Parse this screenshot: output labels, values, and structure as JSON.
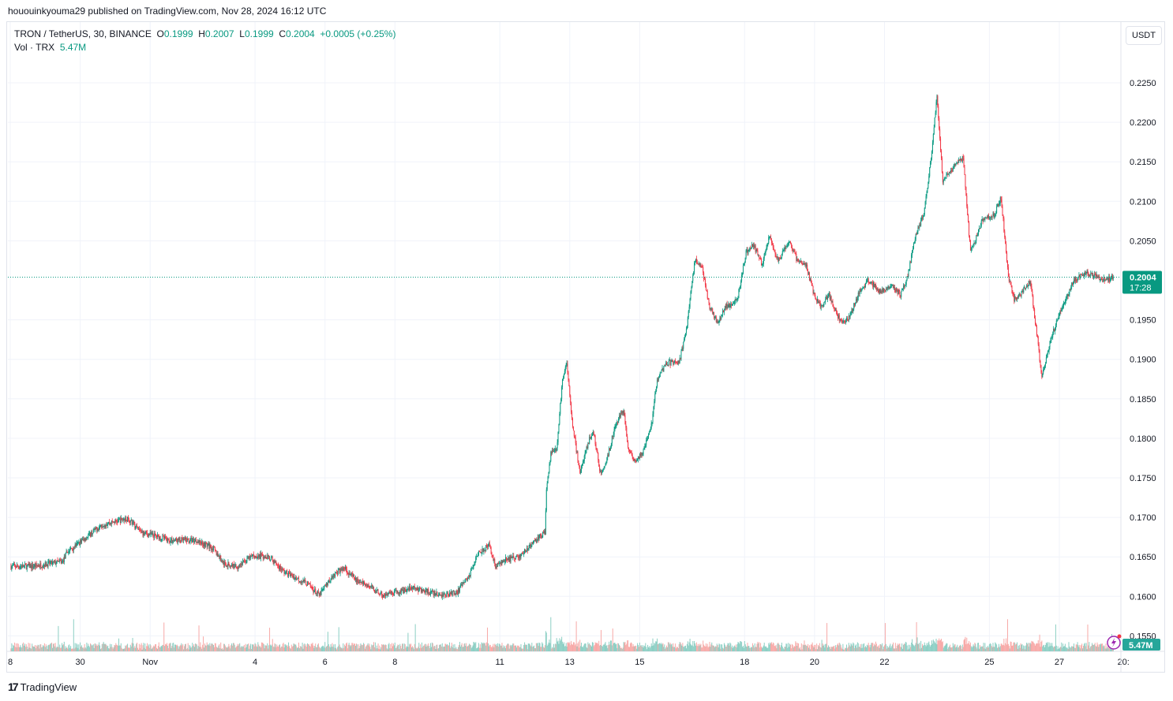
{
  "publisher": "hououinkyouma29 published on TradingView.com, Nov 28, 2024 16:12 UTC",
  "legend": {
    "symbol": "TRON / TetherUS, 30, BINANCE",
    "o_label": "O",
    "o": "0.1999",
    "h_label": "H",
    "h": "0.2007",
    "l_label": "L",
    "l": "0.1999",
    "c_label": "C",
    "c": "0.2004",
    "change": "+0.0005 (+0.25%)",
    "vol_label": "Vol · TRX",
    "vol": "5.47M"
  },
  "currency_button": "USDT",
  "last_price_label": "0.2004",
  "countdown": "17:28",
  "volume_badge": "5.47M",
  "brand": "TradingView",
  "colors": {
    "up": "#089981",
    "down": "#f23645",
    "vol_up": "#8ccfc4",
    "vol_down": "#f7a9a7",
    "grid": "#f0f3fa"
  },
  "chart_data": {
    "type": "candlestick",
    "symbol": "TRXUSDT",
    "interval": "30",
    "ylim": [
      0.154,
      0.229
    ],
    "y_ticks": [
      "0.2250",
      "0.2200",
      "0.2150",
      "0.2100",
      "0.2050",
      "0.1950",
      "0.1900",
      "0.1850",
      "0.1800",
      "0.1750",
      "0.1700",
      "0.1650",
      "0.1600",
      "0.1550"
    ],
    "x_ticks": [
      {
        "label": "8",
        "date": "10-28 00"
      },
      {
        "label": "30",
        "date": "10-30 00"
      },
      {
        "label": "Nov",
        "date": "11-01 00"
      },
      {
        "label": "4",
        "date": "11-04 00"
      },
      {
        "label": "6",
        "date": "11-06 00"
      },
      {
        "label": "8",
        "date": "11-08 00"
      },
      {
        "label": "11",
        "date": "11-11 00"
      },
      {
        "label": "13",
        "date": "11-13 00"
      },
      {
        "label": "15",
        "date": "11-15 00"
      },
      {
        "label": "18",
        "date": "11-18 00"
      },
      {
        "label": "20",
        "date": "11-20 00"
      },
      {
        "label": "22",
        "date": "11-22 00"
      },
      {
        "label": "25",
        "date": "11-25 00"
      },
      {
        "label": "27",
        "date": "11-27 00"
      },
      {
        "label": "20:",
        "date": "11-28 20"
      }
    ],
    "last_price": 0.2004,
    "grid": true,
    "price_path": [
      [
        "10-28 00",
        0.1638
      ],
      [
        "10-28 15",
        0.1638
      ],
      [
        "10-29 12",
        0.1644
      ],
      [
        "10-29 15",
        0.1656
      ],
      [
        "10-30 05",
        0.1676
      ],
      [
        "10-30 15",
        0.1691
      ],
      [
        "10-31 08",
        0.1698
      ],
      [
        "10-31 10",
        0.1696
      ],
      [
        "10-31 18",
        0.1681
      ],
      [
        "11-01 05",
        0.1676
      ],
      [
        "11-01 13",
        0.1671
      ],
      [
        "11-02 08",
        0.1671
      ],
      [
        "11-02 19",
        0.1661
      ],
      [
        "11-03 03",
        0.1641
      ],
      [
        "11-03 12",
        0.1638
      ],
      [
        "11-03 22",
        0.1651
      ],
      [
        "11-04 09",
        0.1651
      ],
      [
        "11-04 20",
        0.1631
      ],
      [
        "11-05 12",
        0.1616
      ],
      [
        "11-05 20",
        0.1601
      ],
      [
        "11-06 05",
        0.1626
      ],
      [
        "11-06 13",
        0.1636
      ],
      [
        "11-06 21",
        0.1621
      ],
      [
        "11-07 08",
        0.1611
      ],
      [
        "11-07 16",
        0.1601
      ],
      [
        "11-08 00",
        0.1604
      ],
      [
        "11-08 11",
        0.1611
      ],
      [
        "11-08 22",
        0.1606
      ],
      [
        "11-09 08",
        0.1601
      ],
      [
        "11-09 19",
        0.1606
      ],
      [
        "11-10 03",
        0.1626
      ],
      [
        "11-10 09",
        0.1656
      ],
      [
        "11-10 17",
        0.1664
      ],
      [
        "11-10 21",
        0.1638
      ],
      [
        "11-11 04",
        0.1646
      ],
      [
        "11-11 14",
        0.1651
      ],
      [
        "11-11 23",
        0.1668
      ],
      [
        "11-12 07",
        0.1681
      ],
      [
        "11-12 08",
        0.1736
      ],
      [
        "11-12 11",
        0.1781
      ],
      [
        "11-12 15",
        0.1786
      ],
      [
        "11-12 19",
        0.1876
      ],
      [
        "11-12 22",
        0.1896
      ],
      [
        "11-13 02",
        0.1816
      ],
      [
        "11-13 07",
        0.1756
      ],
      [
        "11-13 13",
        0.1796
      ],
      [
        "11-13 16",
        0.1811
      ],
      [
        "11-13 21",
        0.1756
      ],
      [
        "11-14 02",
        0.1776
      ],
      [
        "11-14 07",
        0.1816
      ],
      [
        "11-14 13",
        0.1836
      ],
      [
        "11-14 16",
        0.1786
      ],
      [
        "11-14 21",
        0.1771
      ],
      [
        "11-15 02",
        0.1781
      ],
      [
        "11-15 08",
        0.1816
      ],
      [
        "11-15 12",
        0.1876
      ],
      [
        "11-15 19",
        0.1896
      ],
      [
        "11-16 03",
        0.1896
      ],
      [
        "11-16 08",
        0.1936
      ],
      [
        "11-16 11",
        0.1986
      ],
      [
        "11-16 14",
        0.2025
      ],
      [
        "11-16 19",
        0.2015
      ],
      [
        "11-17 00",
        0.1966
      ],
      [
        "11-17 06",
        0.1946
      ],
      [
        "11-17 11",
        0.1966
      ],
      [
        "11-17 19",
        0.1976
      ],
      [
        "11-18 01",
        0.2035
      ],
      [
        "11-18 06",
        0.2045
      ],
      [
        "11-18 12",
        0.202
      ],
      [
        "11-18 17",
        0.2055
      ],
      [
        "11-18 23",
        0.2025
      ],
      [
        "11-19 07",
        0.205
      ],
      [
        "11-19 12",
        0.2025
      ],
      [
        "11-19 18",
        0.202
      ],
      [
        "11-19 23",
        0.1986
      ],
      [
        "11-20 04",
        0.1966
      ],
      [
        "11-20 10",
        0.1981
      ],
      [
        "11-20 18",
        0.1946
      ],
      [
        "11-20 23",
        0.1951
      ],
      [
        "11-21 07",
        0.1986
      ],
      [
        "11-21 13",
        0.2
      ],
      [
        "11-21 21",
        0.1986
      ],
      [
        "11-22 05",
        0.1995
      ],
      [
        "11-22 11",
        0.1981
      ],
      [
        "11-22 16",
        0.2005
      ],
      [
        "11-22 21",
        0.2055
      ],
      [
        "11-23 03",
        0.2085
      ],
      [
        "11-23 08",
        0.2155
      ],
      [
        "11-23 12",
        0.2235
      ],
      [
        "11-23 16",
        0.2125
      ],
      [
        "11-24 00",
        0.2145
      ],
      [
        "11-24 06",
        0.2155
      ],
      [
        "11-24 11",
        0.2035
      ],
      [
        "11-24 19",
        0.2075
      ],
      [
        "11-25 04",
        0.2085
      ],
      [
        "11-25 08",
        0.2105
      ],
      [
        "11-25 13",
        0.2005
      ],
      [
        "11-25 17",
        0.1976
      ],
      [
        "11-25 23",
        0.1986
      ],
      [
        "11-26 04",
        0.2
      ],
      [
        "11-26 09",
        0.1926
      ],
      [
        "11-26 12",
        0.1876
      ],
      [
        "11-26 18",
        0.1926
      ],
      [
        "11-27 02",
        0.1966
      ],
      [
        "11-27 10",
        0.2
      ],
      [
        "11-27 18",
        0.201
      ],
      [
        "11-28 02",
        0.2005
      ],
      [
        "11-28 07",
        0.2
      ],
      [
        "11-28 13",
        0.2004
      ]
    ]
  }
}
